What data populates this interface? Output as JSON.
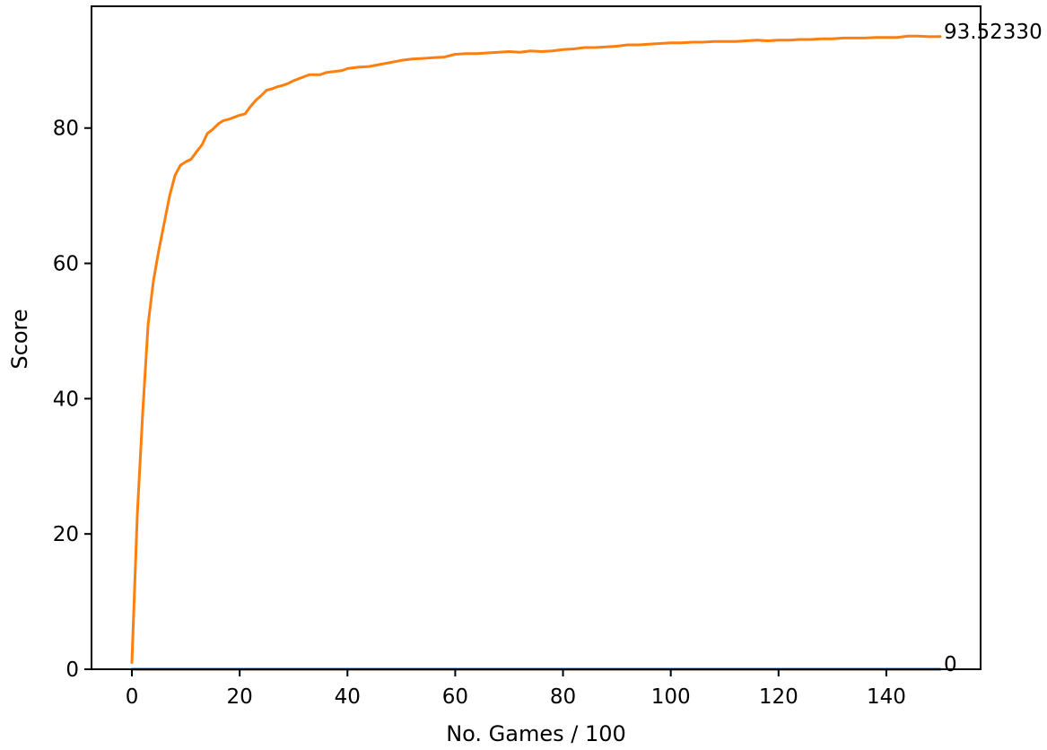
{
  "chart_data": {
    "type": "line",
    "title": "",
    "xlabel": "No. Games / 100",
    "ylabel": "Score",
    "xlim": [
      -7.5,
      157.5
    ],
    "ylim": [
      0,
      98
    ],
    "x_ticks": [
      0,
      20,
      40,
      60,
      80,
      100,
      120,
      140
    ],
    "y_ticks": [
      0,
      20,
      40,
      60,
      80
    ],
    "grid": false,
    "legend": "none",
    "series": [
      {
        "color": "#ff7f0e",
        "end_label": "93.52330",
        "points": [
          [
            0,
            1
          ],
          [
            1,
            23
          ],
          [
            2,
            38
          ],
          [
            3,
            51
          ],
          [
            4,
            57.5
          ],
          [
            5,
            62
          ],
          [
            6,
            66
          ],
          [
            7,
            70
          ],
          [
            8,
            73
          ],
          [
            9,
            74.5
          ],
          [
            10,
            75
          ],
          [
            11,
            75.4
          ],
          [
            12,
            76.5
          ],
          [
            13,
            77.5
          ],
          [
            14,
            79.2
          ],
          [
            15,
            79.8
          ],
          [
            16,
            80.6
          ],
          [
            17,
            81.1
          ],
          [
            18,
            81.3
          ],
          [
            19,
            81.6
          ],
          [
            20,
            81.9
          ],
          [
            21,
            82.1
          ],
          [
            22,
            83.2
          ],
          [
            23,
            84.1
          ],
          [
            24,
            84.8
          ],
          [
            25,
            85.6
          ],
          [
            26,
            85.8
          ],
          [
            27,
            86.1
          ],
          [
            28,
            86.3
          ],
          [
            29,
            86.6
          ],
          [
            30,
            87
          ],
          [
            31,
            87.3
          ],
          [
            32,
            87.6
          ],
          [
            33,
            87.9
          ],
          [
            34,
            87.9
          ],
          [
            35,
            87.9
          ],
          [
            36,
            88.2
          ],
          [
            37,
            88.3
          ],
          [
            38,
            88.4
          ],
          [
            39,
            88.5
          ],
          [
            40,
            88.8
          ],
          [
            42,
            89
          ],
          [
            44,
            89.1
          ],
          [
            46,
            89.4
          ],
          [
            48,
            89.7
          ],
          [
            50,
            90
          ],
          [
            52,
            90.2
          ],
          [
            54,
            90.3
          ],
          [
            56,
            90.4
          ],
          [
            58,
            90.5
          ],
          [
            59,
            90.7
          ],
          [
            60,
            90.9
          ],
          [
            62,
            91
          ],
          [
            64,
            91
          ],
          [
            66,
            91.1
          ],
          [
            68,
            91.2
          ],
          [
            70,
            91.3
          ],
          [
            72,
            91.2
          ],
          [
            74,
            91.4
          ],
          [
            76,
            91.3
          ],
          [
            78,
            91.4
          ],
          [
            80,
            91.6
          ],
          [
            82,
            91.7
          ],
          [
            84,
            91.9
          ],
          [
            86,
            91.9
          ],
          [
            88,
            92
          ],
          [
            90,
            92.1
          ],
          [
            92,
            92.3
          ],
          [
            94,
            92.3
          ],
          [
            96,
            92.4
          ],
          [
            98,
            92.5
          ],
          [
            100,
            92.6
          ],
          [
            102,
            92.6
          ],
          [
            104,
            92.7
          ],
          [
            106,
            92.7
          ],
          [
            108,
            92.8
          ],
          [
            110,
            92.8
          ],
          [
            112,
            92.8
          ],
          [
            114,
            92.9
          ],
          [
            116,
            93
          ],
          [
            118,
            92.9
          ],
          [
            120,
            93
          ],
          [
            122,
            93
          ],
          [
            124,
            93.1
          ],
          [
            126,
            93.1
          ],
          [
            128,
            93.2
          ],
          [
            130,
            93.2
          ],
          [
            132,
            93.3
          ],
          [
            134,
            93.3
          ],
          [
            136,
            93.3
          ],
          [
            138,
            93.4
          ],
          [
            140,
            93.4
          ],
          [
            142,
            93.4
          ],
          [
            144,
            93.6
          ],
          [
            146,
            93.6
          ],
          [
            148,
            93.5
          ],
          [
            150,
            93.52
          ]
        ]
      },
      {
        "color": "#1f77b4",
        "end_label": "0",
        "points": [
          [
            0,
            0
          ],
          [
            150,
            0
          ]
        ]
      }
    ]
  }
}
